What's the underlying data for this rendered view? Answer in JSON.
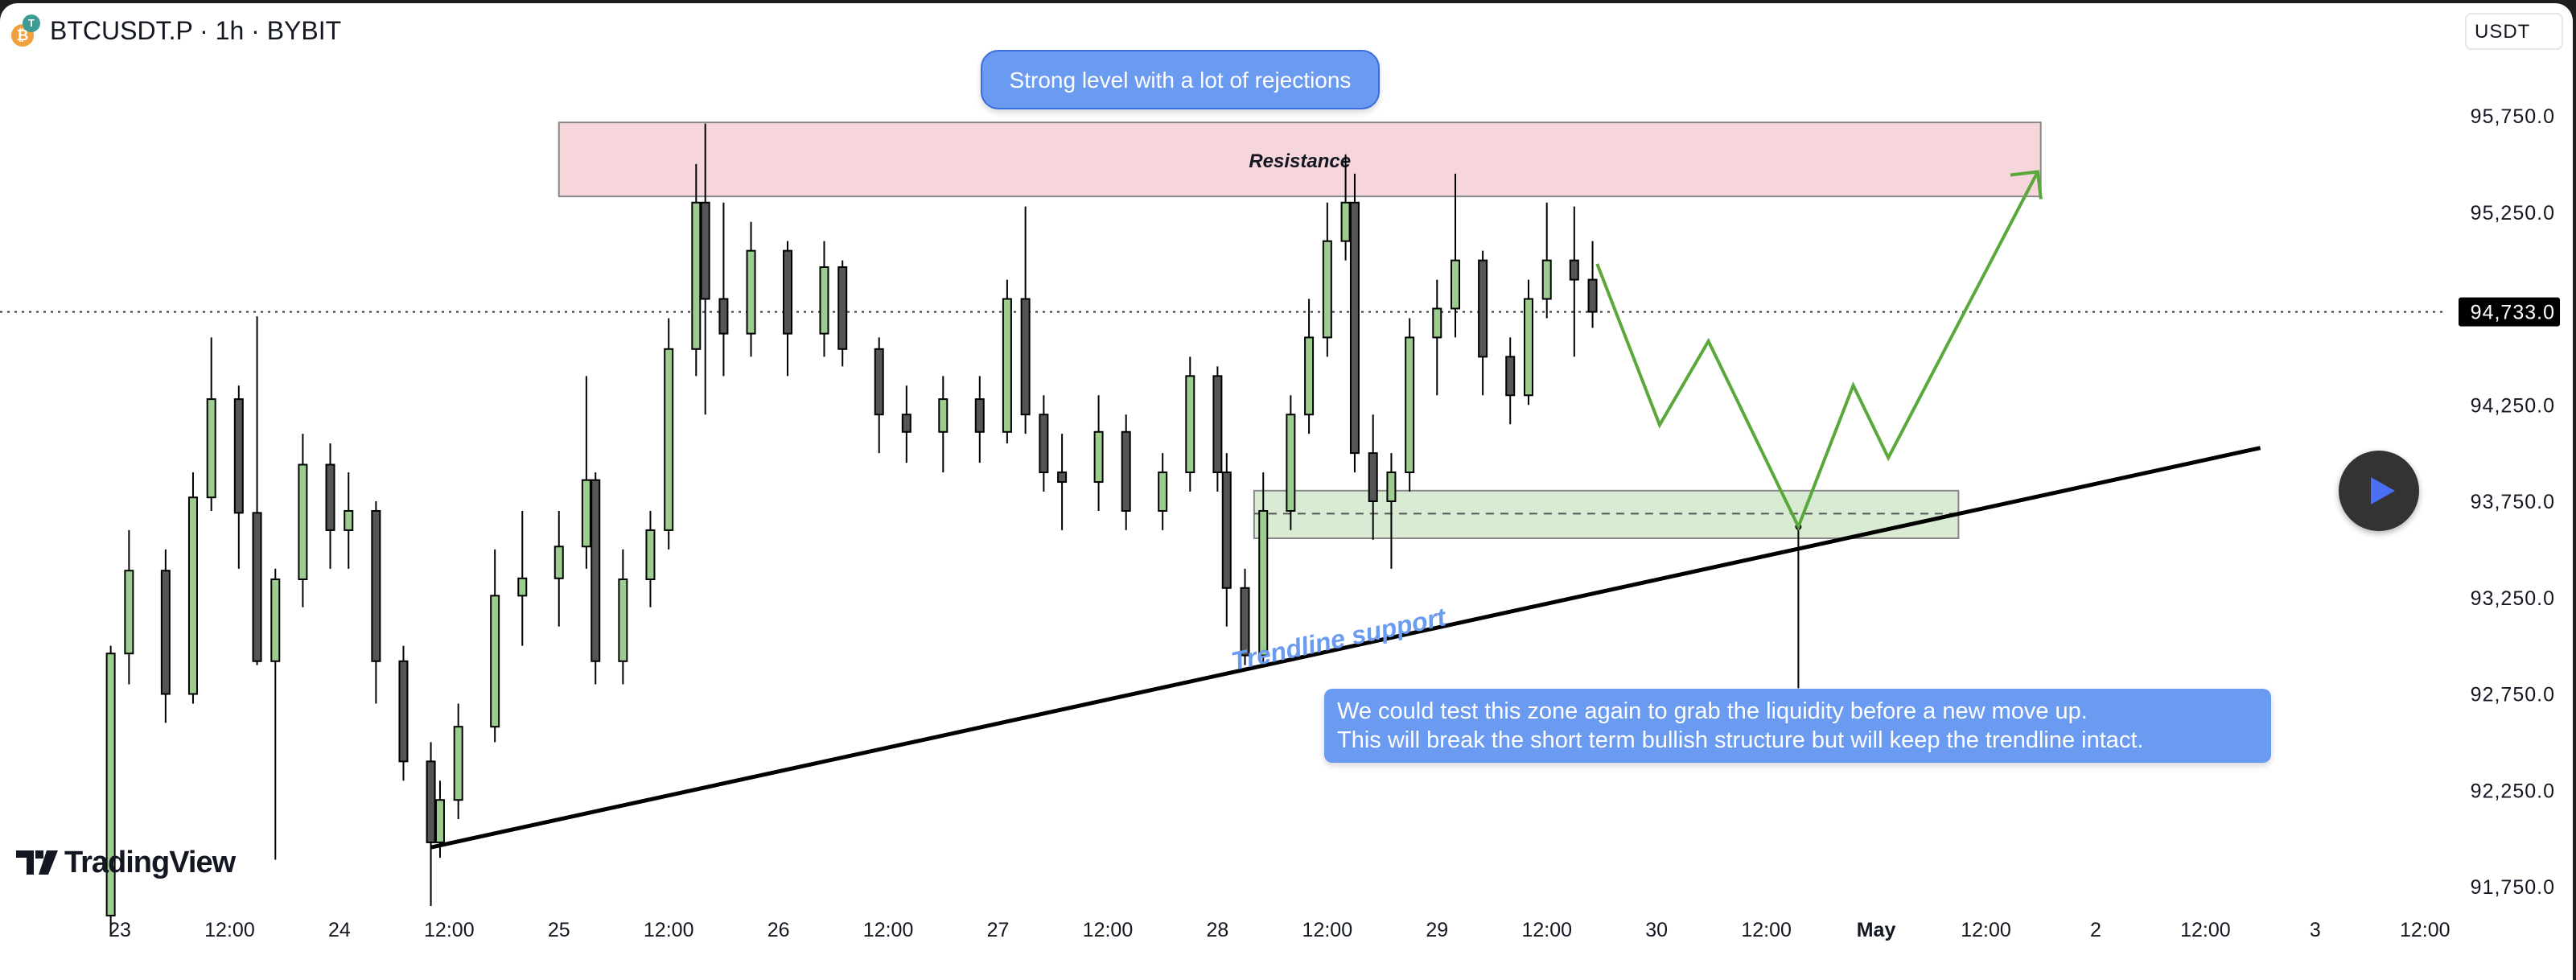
{
  "header": {
    "symbol": "BTCUSDT.P · 1h · BYBIT",
    "currency_button": "USDT",
    "logo": "TradingView"
  },
  "icons": {
    "coin": "btc-usdt-pair-icon",
    "play": "play-icon"
  },
  "colors": {
    "up_fill": "#9ccc8f",
    "down_fill": "#555555",
    "resistance": "#f6d6da",
    "support_zone": "#d9ecd3",
    "projection": "#5aa83c",
    "callout": "#6b9bf0",
    "trendline": "#000000"
  },
  "annotations": {
    "top_callout": "Strong level with a lot of rejections",
    "resistance_label": "Resistance",
    "trendline_label": "Trendline support",
    "bottom_callout_line1": "We could test this zone again to grab the liquidity before a new move up.",
    "bottom_callout_line2": "This will break the short term bullish structure but will keep the trendline intact."
  },
  "chart_data": {
    "type": "candlestick",
    "title": "",
    "y_ticks": [
      {
        "value": 95750,
        "label": "95,750.0"
      },
      {
        "value": 95250,
        "label": "95,250.0"
      },
      {
        "value": 94250,
        "label": "94,250.0"
      },
      {
        "value": 93750,
        "label": "93,750.0"
      },
      {
        "value": 93250,
        "label": "93,250.0"
      },
      {
        "value": 92750,
        "label": "92,750.0"
      },
      {
        "value": 92250,
        "label": "92,250.0"
      },
      {
        "value": 91750,
        "label": "91,750.0"
      }
    ],
    "last_price": {
      "value": 94733,
      "label": "94,733.0"
    },
    "x_ticks": [
      {
        "t": "04-23 00:00",
        "label": "23"
      },
      {
        "t": "04-23 12:00",
        "label": "12:00"
      },
      {
        "t": "04-24 00:00",
        "label": "24"
      },
      {
        "t": "04-24 12:00",
        "label": "12:00"
      },
      {
        "t": "04-25 00:00",
        "label": "25"
      },
      {
        "t": "04-25 12:00",
        "label": "12:00"
      },
      {
        "t": "04-26 00:00",
        "label": "26"
      },
      {
        "t": "04-26 12:00",
        "label": "12:00"
      },
      {
        "t": "04-27 00:00",
        "label": "27"
      },
      {
        "t": "04-27 12:00",
        "label": "12:00"
      },
      {
        "t": "04-28 00:00",
        "label": "28"
      },
      {
        "t": "04-28 12:00",
        "label": "12:00"
      },
      {
        "t": "04-29 00:00",
        "label": "29"
      },
      {
        "t": "04-29 12:00",
        "label": "12:00"
      },
      {
        "t": "04-30 00:00",
        "label": "30"
      },
      {
        "t": "04-30 12:00",
        "label": "12:00"
      },
      {
        "t": "05-01 00:00",
        "label": "May"
      },
      {
        "t": "05-01 12:00",
        "label": "12:00"
      },
      {
        "t": "05-02 00:00",
        "label": "2"
      },
      {
        "t": "05-02 12:00",
        "label": "12:00"
      },
      {
        "t": "05-03 00:00",
        "label": "3"
      },
      {
        "t": "05-03 12:00",
        "label": "12:00"
      }
    ],
    "candles": [
      [
        "04-22 23:00",
        91600,
        93000,
        91500,
        92960
      ],
      [
        "04-23 01:00",
        92960,
        93600,
        92800,
        93390
      ],
      [
        "04-23 05:00",
        93390,
        93500,
        92600,
        92750
      ],
      [
        "04-23 08:00",
        92750,
        93900,
        92700,
        93770
      ],
      [
        "04-23 10:00",
        93770,
        94600,
        93700,
        94280
      ],
      [
        "04-23 13:00",
        94280,
        94350,
        93400,
        93690
      ],
      [
        "04-23 15:00",
        93690,
        94710,
        92900,
        92920
      ],
      [
        "04-23 17:00",
        92920,
        93400,
        91890,
        93345
      ],
      [
        "04-23 20:00",
        93345,
        94100,
        93200,
        93940
      ],
      [
        "04-23 23:00",
        93940,
        94050,
        93400,
        93600
      ],
      [
        "04-24 01:00",
        93600,
        93900,
        93400,
        93700
      ],
      [
        "04-24 04:00",
        93700,
        93750,
        92700,
        92920
      ],
      [
        "04-24 07:00",
        92920,
        93000,
        92300,
        92400
      ],
      [
        "04-24 10:00",
        92400,
        92500,
        91650,
        91980
      ],
      [
        "04-24 11:00",
        91980,
        92300,
        91900,
        92200
      ],
      [
        "04-24 13:00",
        92200,
        92700,
        92100,
        92580
      ],
      [
        "04-24 17:00",
        92580,
        93500,
        92500,
        93260
      ],
      [
        "04-24 20:00",
        93260,
        93700,
        93000,
        93350
      ],
      [
        "04-25 00:00",
        93350,
        93700,
        93100,
        93515
      ],
      [
        "04-25 03:00",
        93515,
        94400,
        93400,
        93860
      ],
      [
        "04-25 04:00",
        93860,
        93900,
        92800,
        92920
      ],
      [
        "04-25 07:00",
        92920,
        93500,
        92800,
        93345
      ],
      [
        "04-25 10:00",
        93345,
        93700,
        93200,
        93600
      ],
      [
        "04-25 12:00",
        93600,
        94700,
        93500,
        94540
      ],
      [
        "04-25 15:00",
        94540,
        95500,
        94400,
        95300
      ],
      [
        "04-25 16:00",
        95300,
        95710,
        94200,
        94800
      ],
      [
        "04-25 18:00",
        94800,
        95300,
        94400,
        94620
      ],
      [
        "04-25 21:00",
        94620,
        95200,
        94500,
        95050
      ],
      [
        "04-26 01:00",
        95050,
        95100,
        94400,
        94620
      ],
      [
        "04-26 05:00",
        94620,
        95100,
        94500,
        94965
      ],
      [
        "04-26 07:00",
        94965,
        95000,
        94450,
        94540
      ],
      [
        "04-26 11:00",
        94540,
        94600,
        94000,
        94200
      ],
      [
        "04-26 14:00",
        94200,
        94350,
        93950,
        94110
      ],
      [
        "04-26 18:00",
        94110,
        94400,
        93900,
        94280
      ],
      [
        "04-26 22:00",
        94280,
        94400,
        93950,
        94110
      ],
      [
        "04-27 01:00",
        94110,
        94900,
        94050,
        94800
      ],
      [
        "04-27 03:00",
        94800,
        95280,
        94100,
        94200
      ],
      [
        "04-27 05:00",
        94200,
        94300,
        93800,
        93900
      ],
      [
        "04-27 07:00",
        93900,
        94100,
        93600,
        93850
      ],
      [
        "04-27 11:00",
        93850,
        94300,
        93700,
        94110
      ],
      [
        "04-27 14:00",
        94110,
        94200,
        93600,
        93700
      ],
      [
        "04-27 18:00",
        93700,
        94000,
        93600,
        93900
      ],
      [
        "04-27 21:00",
        93900,
        94500,
        93800,
        94400
      ],
      [
        "04-28 00:00",
        94400,
        94450,
        93800,
        93900
      ],
      [
        "04-28 01:00",
        93900,
        94000,
        93100,
        93300
      ],
      [
        "04-28 03:00",
        93300,
        93400,
        92900,
        92950
      ],
      [
        "04-28 05:00",
        92950,
        93900,
        92900,
        93700
      ],
      [
        "04-28 08:00",
        93700,
        94300,
        93600,
        94200
      ],
      [
        "04-28 10:00",
        94200,
        94800,
        94100,
        94600
      ],
      [
        "04-28 12:00",
        94600,
        95300,
        94500,
        95100
      ],
      [
        "04-28 14:00",
        95100,
        95550,
        95000,
        95300
      ],
      [
        "04-28 15:00",
        95300,
        95450,
        93900,
        94000
      ],
      [
        "04-28 17:00",
        94000,
        94200,
        93550,
        93750
      ],
      [
        "04-28 19:00",
        93750,
        94000,
        93400,
        93900
      ],
      [
        "04-28 21:00",
        93900,
        94700,
        93800,
        94600
      ],
      [
        "04-29 00:00",
        94600,
        94900,
        94300,
        94750
      ],
      [
        "04-29 02:00",
        94750,
        95450,
        94600,
        95000
      ],
      [
        "04-29 05:00",
        95000,
        95050,
        94300,
        94500
      ],
      [
        "04-29 08:00",
        94500,
        94600,
        94150,
        94300
      ],
      [
        "04-29 10:00",
        94300,
        94900,
        94250,
        94800
      ],
      [
        "04-29 12:00",
        94800,
        95300,
        94700,
        95000
      ],
      [
        "04-29 15:00",
        95000,
        95280,
        94500,
        94900
      ],
      [
        "04-29 17:00",
        94900,
        95100,
        94650,
        94733
      ]
    ],
    "resistance_zone": {
      "from": "04-25 00:00",
      "to": "05-01 18:00",
      "low": 95332,
      "high": 95716
    },
    "support_zone": {
      "from": "04-28 04:00",
      "to": "05-01 09:00",
      "low": 93558,
      "high": 93805,
      "mid": 93686
    },
    "trendline": [
      [
        "04-24 10:00",
        91954
      ],
      [
        "05-02 18:00",
        94027
      ]
    ],
    "projection": [
      [
        "04-29 17:30",
        94982
      ],
      [
        "04-30 00:20",
        94146
      ],
      [
        "04-30 05:40",
        94581
      ],
      [
        "04-30 15:30",
        93618
      ],
      [
        "04-30 21:30",
        94351
      ],
      [
        "05-01 01:20",
        93976
      ],
      [
        "05-01 17:40",
        95460
      ]
    ],
    "marker_line": {
      "t": "04-30 15:30",
      "from": 93618,
      "to": 92780
    }
  }
}
